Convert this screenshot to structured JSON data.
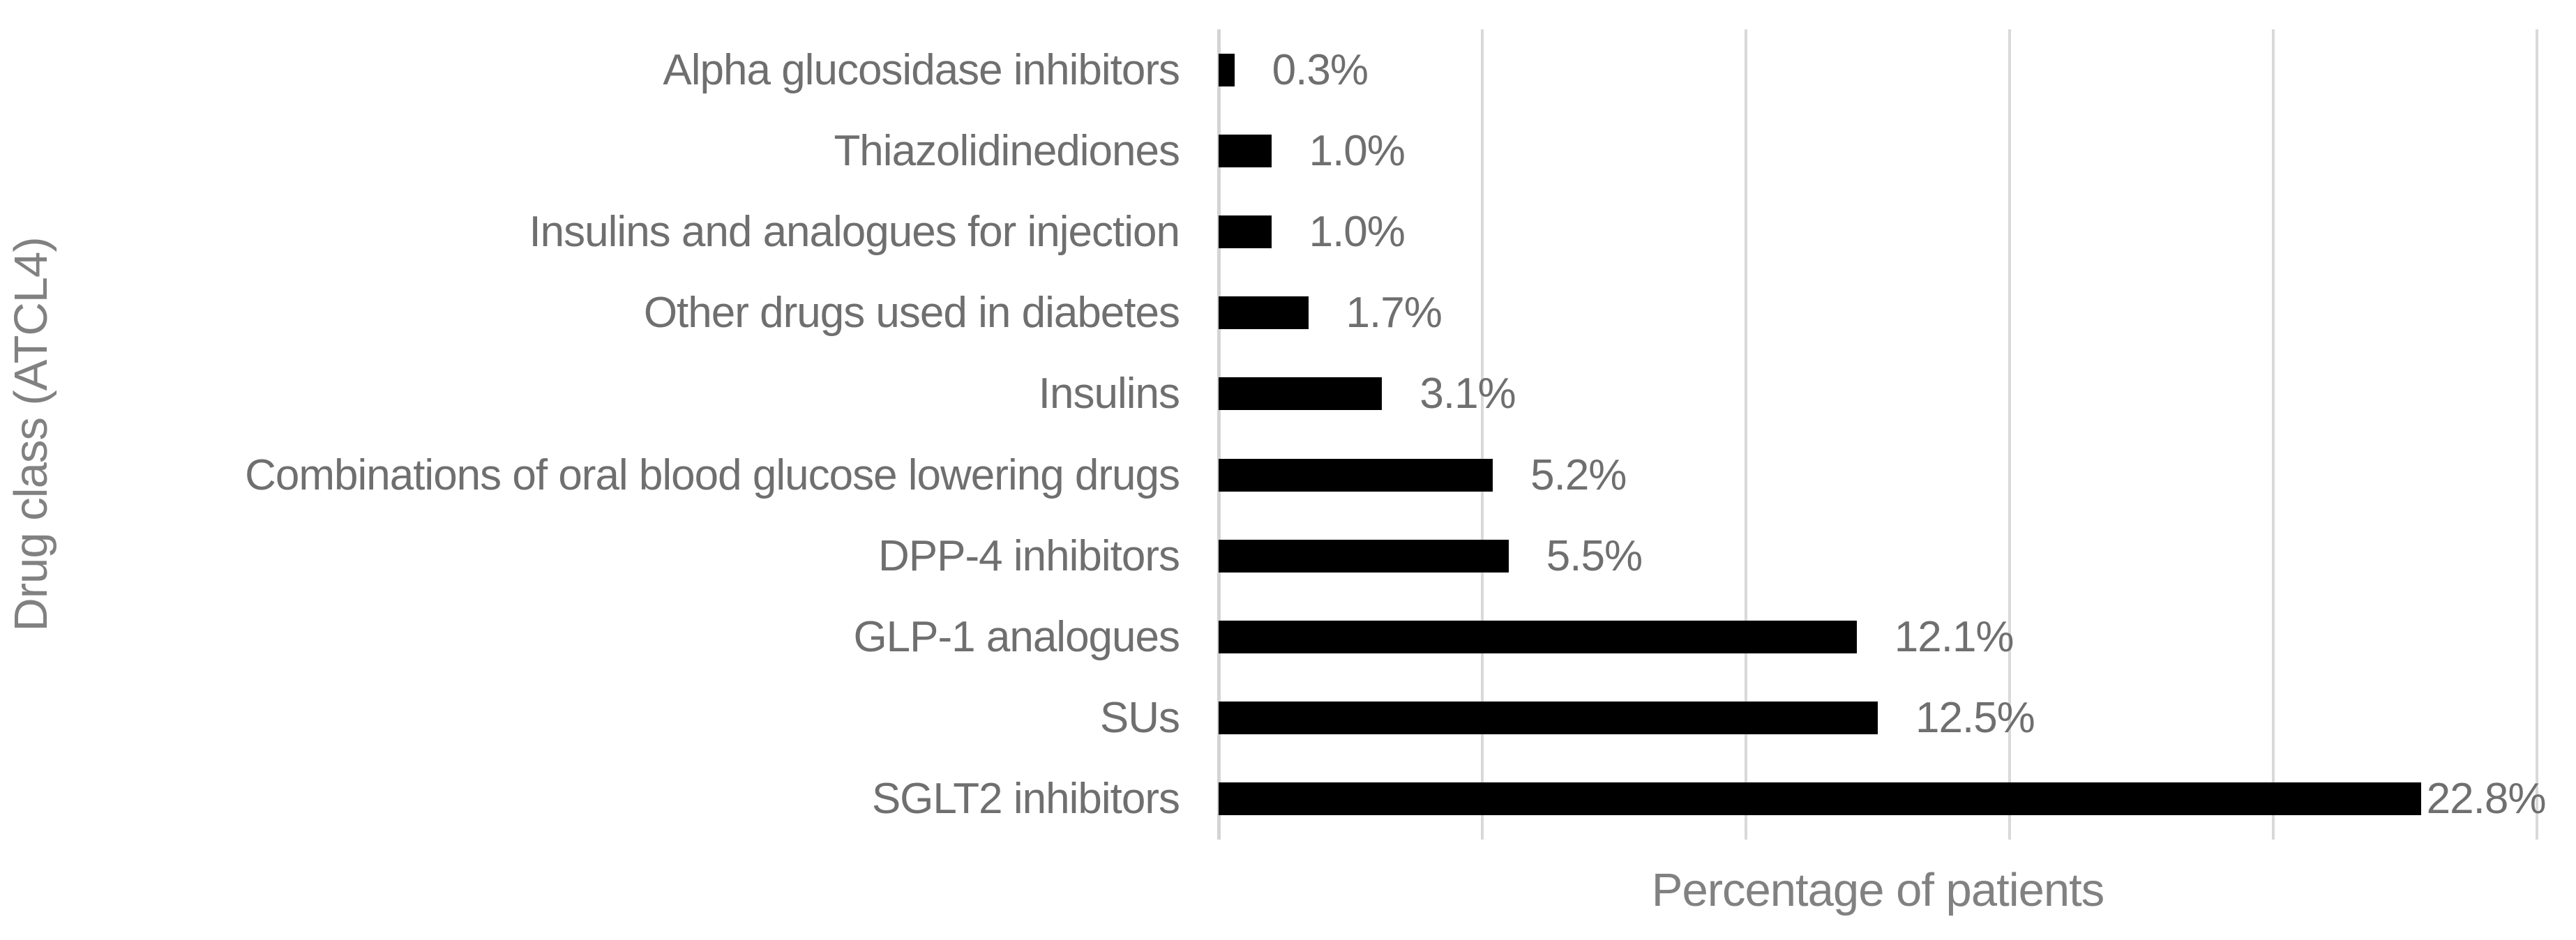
{
  "chart_data": {
    "type": "bar",
    "orientation": "horizontal",
    "categories": [
      "Alpha glucosidase inhibitors",
      "Thiazolidinediones",
      "Insulins and analogues for injection",
      "Other drugs used in diabetes",
      "Insulins",
      "Combinations of oral blood glucose lowering drugs",
      "DPP-4 inhibitors",
      "GLP-1 analogues",
      "SUs",
      "SGLT2 inhibitors"
    ],
    "values": [
      0.3,
      1.0,
      1.0,
      1.7,
      3.1,
      5.2,
      5.5,
      12.1,
      12.5,
      22.8
    ],
    "value_labels": [
      "0.3%",
      "1.0%",
      "1.0%",
      "1.7%",
      "3.1%",
      "5.2%",
      "5.5%",
      "12.1%",
      "12.5%",
      "22.8%"
    ],
    "xlabel": "Percentage of patients",
    "ylabel": "Drug class (ATCL4)",
    "xlim": [
      0,
      25
    ],
    "gridline_step": 5,
    "grid": true,
    "legend": "none",
    "title": "",
    "colors": {
      "bar": "#000000",
      "gridline": "#d9d9d9",
      "axis_line": "#d4d4d4",
      "label_text": "#6f6f6f",
      "axis_title_text": "#818181",
      "background": "#ffffff"
    }
  }
}
